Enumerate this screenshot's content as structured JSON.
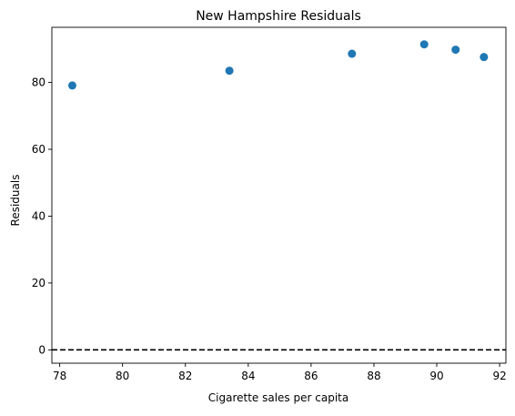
{
  "chart_data": {
    "type": "scatter",
    "title": "New Hampshire Residuals",
    "xlabel": "Cigarette sales per capita",
    "ylabel": "Residuals",
    "xlim": [
      77.75,
      92.2
    ],
    "ylim": [
      -4,
      96.5
    ],
    "xticks": [
      78,
      80,
      82,
      84,
      86,
      88,
      90,
      92
    ],
    "yticks": [
      0,
      20,
      40,
      60,
      80
    ],
    "x": [
      78.4,
      83.4,
      87.3,
      89.6,
      90.6,
      91.5
    ],
    "y": [
      79.1,
      83.5,
      88.6,
      91.4,
      89.8,
      87.6
    ],
    "reference_line": {
      "y": 0,
      "style": "dashed",
      "color": "#000000"
    },
    "point_color": "#1f77b4",
    "grid": false,
    "legend": "none"
  }
}
